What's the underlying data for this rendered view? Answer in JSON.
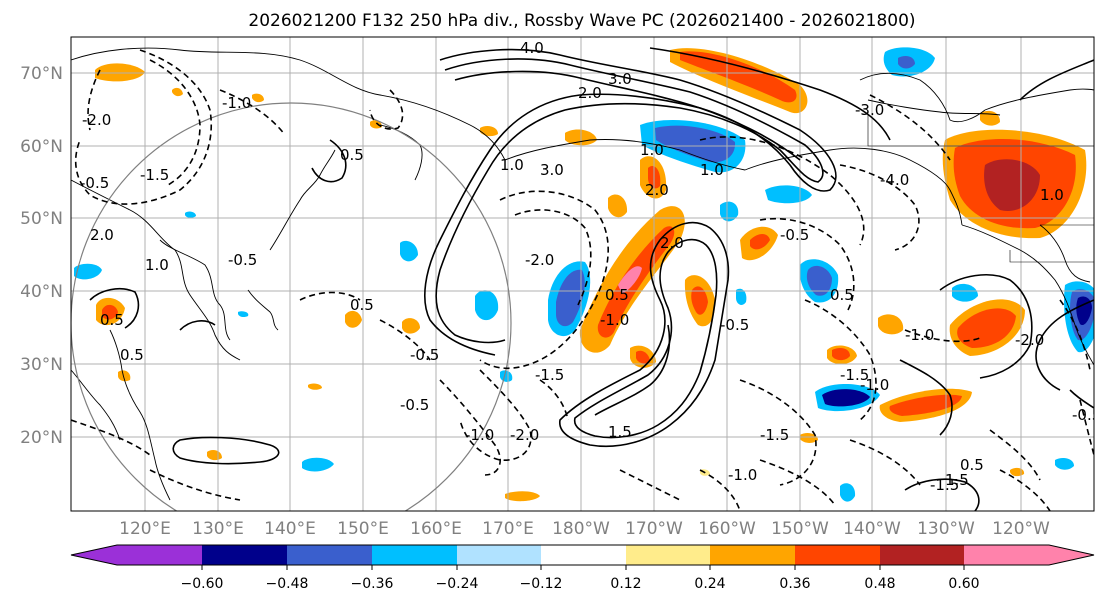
{
  "title": "2026021200 F132 250 hPa div., Rossby Wave PC (2026021400 - 2026021800)",
  "lat_labels": [
    "70°N",
    "60°N",
    "50°N",
    "40°N",
    "30°N",
    "20°N"
  ],
  "lon_labels": [
    "120°E",
    "130°E",
    "140°E",
    "150°E",
    "160°E",
    "170°E",
    "180°W",
    "170°W",
    "160°W",
    "150°W",
    "140°W",
    "130°W",
    "120°W"
  ],
  "colorbar": {
    "tick_labels": [
      "−0.60",
      "−0.48",
      "−0.36",
      "−0.24",
      "−0.12",
      "0.12",
      "0.24",
      "0.36",
      "0.48",
      "0.60"
    ],
    "colors": [
      "#9b30d8",
      "#00008b",
      "#3a5fcd",
      "#00bfff",
      "#b0e2ff",
      "#ffffff",
      "#ffec8b",
      "#ffa500",
      "#ff4500",
      "#b22222",
      "#ff82ab"
    ]
  },
  "contour_labels": [
    "4.0",
    "3.0",
    "2.0",
    "1.0",
    "0.5",
    "-0.5",
    "-1.0",
    "-1.5",
    "-2.0",
    "2.0",
    "1.0",
    "-0.5",
    "-2.0",
    "-1.5",
    "0.5",
    "-1.0",
    "1.5",
    "0.5",
    "0.5",
    "-0.5",
    "-0.5",
    "2.0",
    "-0.5",
    "-1.0",
    "-1.5",
    "0.5",
    "1.0",
    "-0.5",
    "-2.0",
    "3.0",
    "-3.0",
    "-4.0",
    "2.0",
    "1.0",
    "0.5",
    "-1.0",
    "-1.5",
    "-2.0",
    "-1.0",
    "1.0",
    "0.5",
    "-0.5",
    "1.5",
    "-1.0",
    "-1.5"
  ]
}
